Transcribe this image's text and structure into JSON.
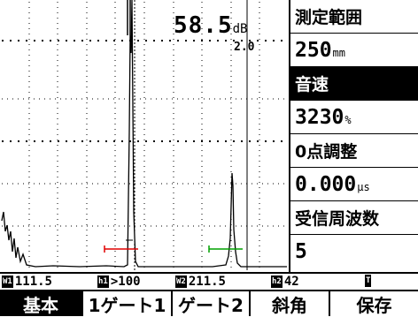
{
  "scope": {
    "gain_value": "58.5",
    "gain_unit": "dB",
    "gain_step": "2.0",
    "gate1_color": "#e00000",
    "gate2_color": "#00a000",
    "trace_color": "#000000"
  },
  "panel": {
    "items": [
      {
        "label": "測定範囲",
        "value": "250",
        "unit": "mm"
      },
      {
        "label": "音速",
        "value": "3230",
        "unit": "%",
        "selected": true
      },
      {
        "label": "0点調整",
        "value": "0.000",
        "unit": "μs"
      },
      {
        "label": "受信周波数",
        "value": "5",
        "unit": ""
      }
    ]
  },
  "readout": {
    "r1_tag": "W1",
    "r1_value": "111.5",
    "r2_tag": "h1",
    "r2_value": ">100",
    "r3_tag": "W2",
    "r3_value": "211.5",
    "r4_tag": "h2",
    "r4_value": "42",
    "r5_tag": "T"
  },
  "menu": {
    "items": [
      "基本",
      "1ゲート1",
      "ゲート2",
      "斜角",
      "保存"
    ],
    "selected_index": 0
  }
}
